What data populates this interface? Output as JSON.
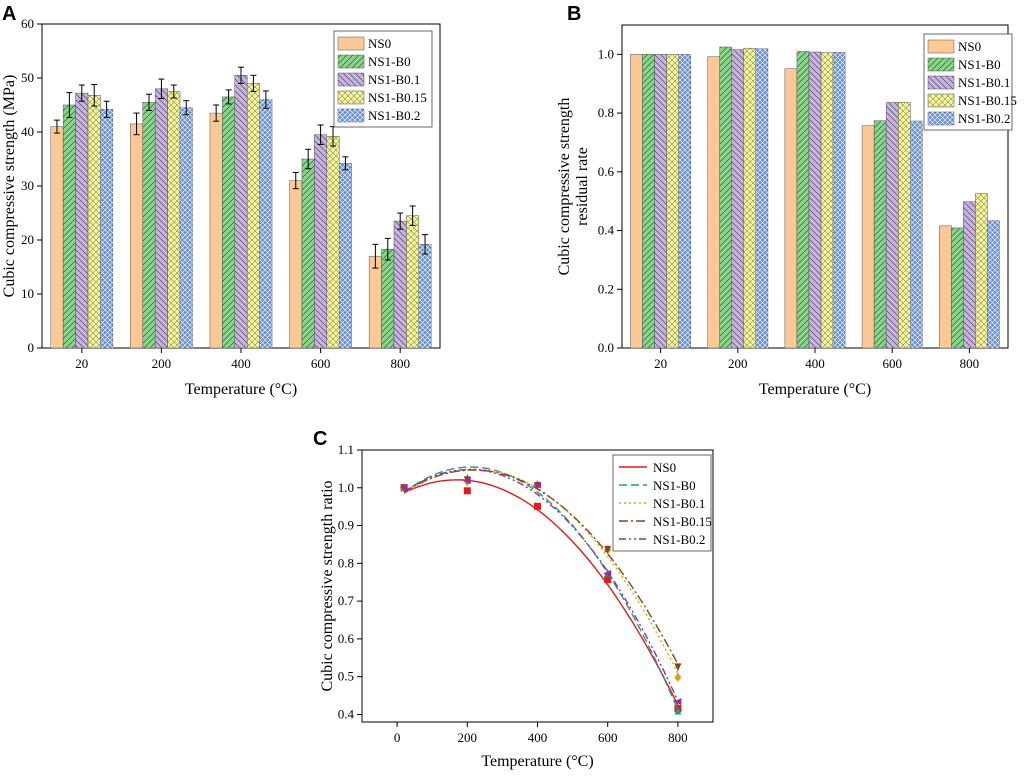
{
  "panels": {
    "A": {
      "letter": "A"
    },
    "B": {
      "letter": "B"
    },
    "C": {
      "letter": "C"
    }
  },
  "colors": {
    "NS0": "#fbc896",
    "NS1-B0": "#88d48a",
    "NS1-B0.1": "#c7b2e0",
    "NS1-B0.15": "#f2f29a",
    "NS1-B0.2": "#6a92d2"
  },
  "line_colors": {
    "NS0": "#e41a1c",
    "NS1-B0": "#1aa37a",
    "NS1-B0.1": "#d9a21b",
    "NS1-B0.15": "#8b4513",
    "NS1-B0.2": "#9c2aa6"
  },
  "chart_data": [
    {
      "id": "A",
      "type": "bar",
      "title": "",
      "xlabel": "Temperature (°C)",
      "ylabel": "Cubic compressive strength (MPa)",
      "categories": [
        "20",
        "200",
        "400",
        "600",
        "800"
      ],
      "ylim": [
        0,
        60
      ],
      "yticks": [
        "0",
        "10",
        "20",
        "30",
        "40",
        "50",
        "60"
      ],
      "legend_position": "top-right",
      "series": [
        {
          "name": "NS0",
          "values": [
            41.0,
            41.5,
            43.5,
            31.0,
            17.0
          ],
          "errors": [
            1.2,
            2.0,
            1.5,
            1.5,
            2.2
          ]
        },
        {
          "name": "NS1-B0",
          "values": [
            45.0,
            45.5,
            46.5,
            35.0,
            18.3
          ],
          "errors": [
            2.3,
            1.5,
            1.3,
            1.8,
            2.0
          ]
        },
        {
          "name": "NS1-B0.1",
          "values": [
            47.2,
            48.0,
            50.5,
            39.5,
            23.5
          ],
          "errors": [
            1.5,
            1.8,
            1.5,
            1.8,
            1.5
          ]
        },
        {
          "name": "NS1-B0.15",
          "values": [
            46.8,
            47.5,
            49.0,
            39.2,
            24.5
          ],
          "errors": [
            2.0,
            1.2,
            1.5,
            1.8,
            1.8
          ]
        },
        {
          "name": "NS1-B0.2",
          "values": [
            44.2,
            44.5,
            46.0,
            34.2,
            19.2
          ],
          "errors": [
            1.5,
            1.3,
            1.6,
            1.2,
            1.8
          ]
        }
      ]
    },
    {
      "id": "B",
      "type": "bar",
      "title": "",
      "xlabel": "Temperature (°C)",
      "ylabel": "Cubic compressive strength",
      "ylabel2": "residual rate",
      "categories": [
        "20",
        "200",
        "400",
        "600",
        "800"
      ],
      "ylim": [
        0.0,
        1.1
      ],
      "yticks": [
        "0.0",
        "0.2",
        "0.4",
        "0.6",
        "0.8",
        "1.0"
      ],
      "legend_position": "top-right",
      "series": [
        {
          "name": "NS0",
          "values": [
            1.0,
            0.992,
            0.951,
            0.757,
            0.416
          ]
        },
        {
          "name": "NS1-B0",
          "values": [
            1.0,
            1.025,
            1.01,
            0.774,
            0.409
          ]
        },
        {
          "name": "NS1-B0.1",
          "values": [
            1.0,
            1.016,
            1.008,
            0.836,
            0.498
          ]
        },
        {
          "name": "NS1-B0.15",
          "values": [
            1.0,
            1.021,
            1.006,
            0.837,
            0.526
          ]
        },
        {
          "name": "NS1-B0.2",
          "values": [
            1.0,
            1.019,
            1.007,
            0.773,
            0.434
          ]
        }
      ]
    },
    {
      "id": "C",
      "type": "line",
      "title": "",
      "xlabel": "Temperature (°C)",
      "ylabel": "Cubic compressive strength ratio",
      "xlim": [
        -100,
        900
      ],
      "ylim": [
        0.38,
        1.1
      ],
      "xticks": [
        "0",
        "200",
        "400",
        "600",
        "800"
      ],
      "yticks": [
        "0.4",
        "0.5",
        "0.6",
        "0.7",
        "0.8",
        "0.9",
        "1.0",
        "1.1"
      ],
      "legend_position": "top-right",
      "x": [
        20,
        200,
        400,
        600,
        800
      ],
      "series": [
        {
          "name": "NS0",
          "marker": "square",
          "dash": "",
          "values": [
            1.0,
            0.992,
            0.951,
            0.757,
            0.416
          ]
        },
        {
          "name": "NS1-B0",
          "marker": "triangle",
          "dash": "8,4",
          "values": [
            1.0,
            1.025,
            1.01,
            0.774,
            0.409
          ]
        },
        {
          "name": "NS1-B0.1",
          "marker": "diamond",
          "dash": "2,3",
          "values": [
            1.0,
            1.016,
            1.008,
            0.836,
            0.498
          ]
        },
        {
          "name": "NS1-B0.15",
          "marker": "triangle-down",
          "dash": "9,3,2,3",
          "values": [
            1.0,
            1.021,
            1.006,
            0.837,
            0.526
          ]
        },
        {
          "name": "NS1-B0.2",
          "marker": "triangle-left",
          "dash": "7,3,2,3,2,3",
          "values": [
            1.0,
            1.019,
            1.007,
            0.773,
            0.434
          ]
        }
      ]
    }
  ]
}
